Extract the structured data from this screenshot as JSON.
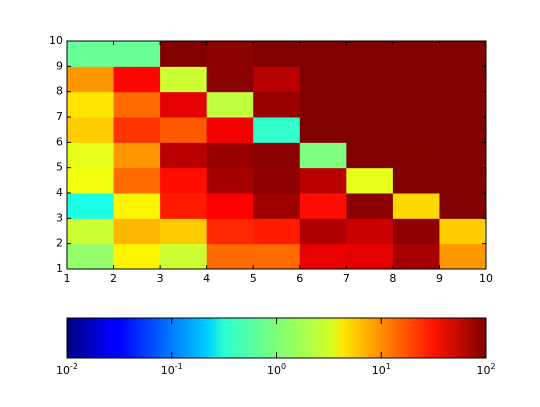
{
  "chart_data": {
    "type": "heatmap",
    "xlim": [
      1,
      10
    ],
    "ylim": [
      1,
      10
    ],
    "xticks": [
      1,
      2,
      3,
      4,
      5,
      6,
      7,
      8,
      9,
      10
    ],
    "yticks": [
      1,
      2,
      3,
      4,
      5,
      6,
      7,
      8,
      9,
      10
    ],
    "colormap": "jet",
    "color_scale": "log",
    "z": [
      [
        1.2,
        3.5,
        2,
        12,
        12,
        38,
        40,
        70,
        8
      ],
      [
        2,
        6,
        5,
        22,
        25,
        65,
        50,
        85,
        5
      ],
      [
        0.4,
        3.5,
        25,
        32,
        75,
        28,
        90,
        4.5,
        100
      ],
      [
        2.8,
        12,
        28,
        70,
        85,
        60,
        2.5,
        100,
        100
      ],
      [
        2.5,
        8,
        60,
        80,
        90,
        1,
        100,
        95,
        100
      ],
      [
        5,
        20,
        14,
        35,
        0.5,
        100,
        100,
        100,
        100
      ],
      [
        4,
        12,
        40,
        1.8,
        80,
        100,
        100,
        100,
        100
      ],
      [
        8,
        30,
        2,
        90,
        60,
        100,
        100,
        100,
        100
      ],
      [
        0.8,
        0.8,
        100,
        90,
        100,
        100,
        100,
        100,
        100
      ]
    ],
    "colorbar": {
      "lim": [
        0.01,
        100
      ],
      "ticks": [
        {
          "value": 0.01,
          "label": "10",
          "exponent": "-2"
        },
        {
          "value": 0.1,
          "label": "10",
          "exponent": "-1"
        },
        {
          "value": 1,
          "label": "10",
          "exponent": "0"
        },
        {
          "value": 10,
          "label": "10",
          "exponent": "1"
        },
        {
          "value": 100,
          "label": "10",
          "exponent": "2"
        }
      ]
    }
  }
}
